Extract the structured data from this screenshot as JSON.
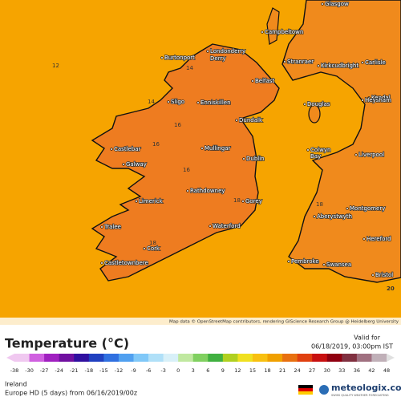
{
  "map": {
    "places": [
      "Glasgow",
      "Campbeltown",
      "Londonderry",
      "Derry",
      "Burtonport",
      "Stranraer",
      "Kirkcudbright",
      "Carlisle",
      "Belfast",
      "Kendal",
      "Sligo",
      "Enniskillen",
      "Douglas",
      "Heysham",
      "Dundalk",
      "Castlebar",
      "Mullingar",
      "Colwyn",
      "Bay",
      "Liverpool",
      "Galway",
      "Dublin",
      "Rathdowney",
      "Gorey",
      "Limerick",
      "Montgomery",
      "Aberystwyth",
      "Tralee",
      "Waterford",
      "Hereford",
      "Cork",
      "Castletownbere",
      "Pembroke",
      "Swansea",
      "Bristol"
    ],
    "isotherm_labels": [
      12,
      14,
      14,
      16,
      16,
      16,
      18,
      18,
      18,
      20
    ],
    "attribution": "Map data © OpenStreetMap contributors, rendering GIScience Research Group @ Heidelberg University"
  },
  "legend": {
    "title": "Temperature (°C)",
    "valid_label": "Valid for",
    "valid_time": "06/18/2019, 03:00pm IST",
    "ticks": [
      -38,
      -30,
      -27,
      -24,
      -21,
      -18,
      -15,
      -12,
      -9,
      -6,
      -3,
      0,
      3,
      6,
      9,
      12,
      15,
      18,
      21,
      24,
      27,
      30,
      33,
      36,
      42,
      48
    ]
  },
  "footer": {
    "region": "Ireland",
    "model": "Europe HD (5 days) from 06/16/2019/00z",
    "brand": "meteologix.com",
    "tagline": "SWISS QUALITY WEATHER FORECASTING"
  }
}
